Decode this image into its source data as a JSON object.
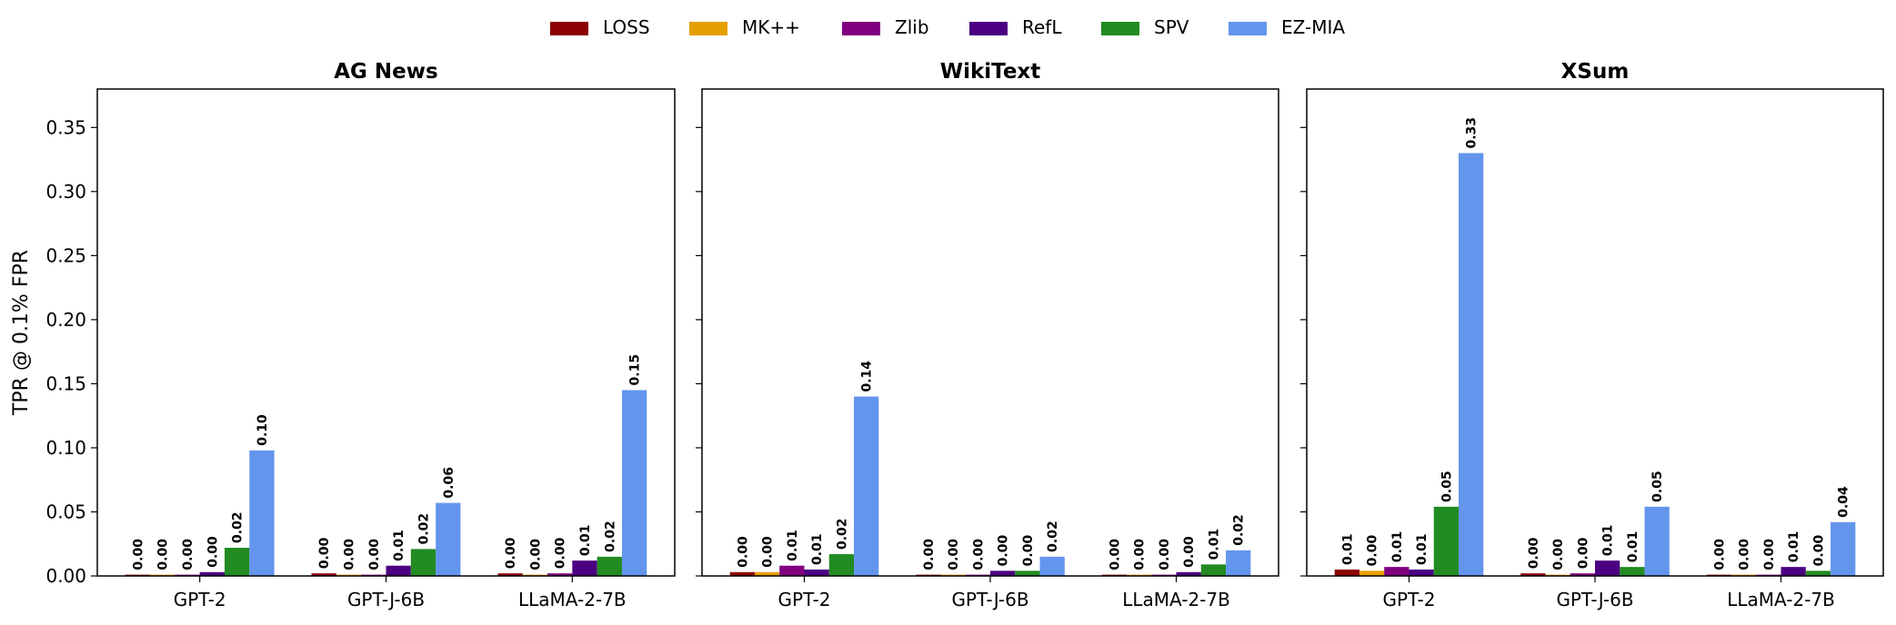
{
  "legend": [
    {
      "name": "LOSS",
      "color": "#8b0000"
    },
    {
      "name": "MK++",
      "color": "#e69f00"
    },
    {
      "name": "Zlib",
      "color": "#800080"
    },
    {
      "name": "RefL",
      "color": "#4b0082"
    },
    {
      "name": "SPV",
      "color": "#228b22"
    },
    {
      "name": "EZ-MIA",
      "color": "#6495ed"
    }
  ],
  "chart_data": {
    "type": "bar",
    "ylabel": "TPR @ 0.1% FPR",
    "ylim": [
      0,
      0.38
    ],
    "yticks": [
      "0.00",
      "0.05",
      "0.10",
      "0.15",
      "0.20",
      "0.25",
      "0.30",
      "0.35"
    ],
    "legend_position": "top-center",
    "grid": false,
    "categories": [
      "GPT-2",
      "GPT-J-6B",
      "LLaMA-2-7B"
    ],
    "panels": [
      {
        "title": "AG News",
        "series": [
          {
            "name": "LOSS",
            "values": [
              0.001,
              0.002,
              0.002
            ],
            "labels": [
              "0.00",
              "0.00",
              "0.00"
            ]
          },
          {
            "name": "MK++",
            "values": [
              0.001,
              0.001,
              0.001
            ],
            "labels": [
              "0.00",
              "0.00",
              "0.00"
            ]
          },
          {
            "name": "Zlib",
            "values": [
              0.001,
              0.001,
              0.002
            ],
            "labels": [
              "0.00",
              "0.00",
              "0.00"
            ]
          },
          {
            "name": "RefL",
            "values": [
              0.003,
              0.008,
              0.012
            ],
            "labels": [
              "0.00",
              "0.01",
              "0.01"
            ]
          },
          {
            "name": "SPV",
            "values": [
              0.022,
              0.021,
              0.015
            ],
            "labels": [
              "0.02",
              "0.02",
              "0.02"
            ]
          },
          {
            "name": "EZ-MIA",
            "values": [
              0.098,
              0.057,
              0.145
            ],
            "labels": [
              "0.10",
              "0.06",
              "0.15"
            ]
          }
        ]
      },
      {
        "title": "WikiText",
        "series": [
          {
            "name": "LOSS",
            "values": [
              0.003,
              0.001,
              0.001
            ],
            "labels": [
              "0.00",
              "0.00",
              "0.00"
            ]
          },
          {
            "name": "MK++",
            "values": [
              0.003,
              0.001,
              0.001
            ],
            "labels": [
              "0.00",
              "0.00",
              "0.00"
            ]
          },
          {
            "name": "Zlib",
            "values": [
              0.008,
              0.001,
              0.001
            ],
            "labels": [
              "0.01",
              "0.00",
              "0.00"
            ]
          },
          {
            "name": "RefL",
            "values": [
              0.005,
              0.004,
              0.003
            ],
            "labels": [
              "0.01",
              "0.00",
              "0.00"
            ]
          },
          {
            "name": "SPV",
            "values": [
              0.017,
              0.004,
              0.009
            ],
            "labels": [
              "0.02",
              "0.00",
              "0.01"
            ]
          },
          {
            "name": "EZ-MIA",
            "values": [
              0.14,
              0.015,
              0.02
            ],
            "labels": [
              "0.14",
              "0.02",
              "0.02"
            ]
          }
        ]
      },
      {
        "title": "XSum",
        "series": [
          {
            "name": "LOSS",
            "values": [
              0.005,
              0.002,
              0.001
            ],
            "labels": [
              "0.01",
              "0.00",
              "0.00"
            ]
          },
          {
            "name": "MK++",
            "values": [
              0.004,
              0.001,
              0.001
            ],
            "labels": [
              "0.00",
              "0.00",
              "0.00"
            ]
          },
          {
            "name": "Zlib",
            "values": [
              0.007,
              0.002,
              0.001
            ],
            "labels": [
              "0.01",
              "0.00",
              "0.00"
            ]
          },
          {
            "name": "RefL",
            "values": [
              0.005,
              0.012,
              0.007
            ],
            "labels": [
              "0.01",
              "0.01",
              "0.01"
            ]
          },
          {
            "name": "SPV",
            "values": [
              0.054,
              0.007,
              0.004
            ],
            "labels": [
              "0.05",
              "0.01",
              "0.00"
            ]
          },
          {
            "name": "EZ-MIA",
            "values": [
              0.33,
              0.054,
              0.042
            ],
            "labels": [
              "0.33",
              "0.05",
              "0.04"
            ]
          }
        ]
      }
    ]
  }
}
